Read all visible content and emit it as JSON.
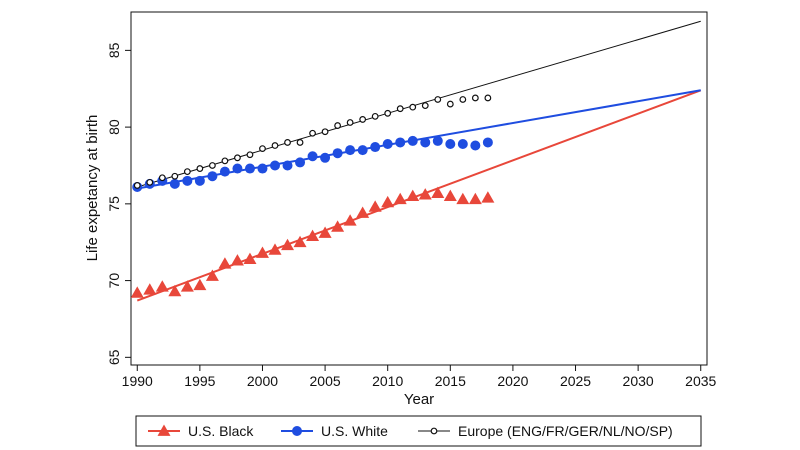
{
  "chart_data": {
    "type": "line",
    "title": "",
    "xlabel": "Year",
    "ylabel": "Life expetancy at birth",
    "xlim": [
      1989.5,
      2035.5
    ],
    "ylim": [
      64.5,
      87.5
    ],
    "xticks": [
      1990,
      1995,
      2000,
      2005,
      2010,
      2015,
      2020,
      2025,
      2030,
      2035
    ],
    "yticks": [
      65,
      70,
      75,
      80,
      85
    ],
    "grid": false,
    "legend_position": "bottom",
    "series": [
      {
        "name": "U.S. Black",
        "marker": "triangle",
        "color": "#e8473a",
        "x": [
          1990,
          1991,
          1992,
          1993,
          1994,
          1995,
          1996,
          1997,
          1998,
          1999,
          2000,
          2001,
          2002,
          2003,
          2004,
          2005,
          2006,
          2007,
          2008,
          2009,
          2010,
          2011,
          2012,
          2013,
          2014,
          2015,
          2016,
          2017,
          2018
        ],
        "y": [
          69.2,
          69.4,
          69.6,
          69.3,
          69.6,
          69.7,
          70.3,
          71.1,
          71.3,
          71.4,
          71.8,
          72.0,
          72.3,
          72.5,
          72.9,
          73.1,
          73.5,
          73.9,
          74.4,
          74.8,
          75.1,
          75.3,
          75.5,
          75.6,
          75.7,
          75.5,
          75.3,
          75.3,
          75.4
        ]
      },
      {
        "name": "U.S. White",
        "marker": "circle",
        "color": "#1f4de0",
        "x": [
          1990,
          1991,
          1992,
          1993,
          1994,
          1995,
          1996,
          1997,
          1998,
          1999,
          2000,
          2001,
          2002,
          2003,
          2004,
          2005,
          2006,
          2007,
          2008,
          2009,
          2010,
          2011,
          2012,
          2013,
          2014,
          2015,
          2016,
          2017,
          2018
        ],
        "y": [
          76.1,
          76.3,
          76.5,
          76.3,
          76.5,
          76.5,
          76.8,
          77.1,
          77.3,
          77.3,
          77.3,
          77.5,
          77.5,
          77.7,
          78.1,
          78.0,
          78.3,
          78.5,
          78.5,
          78.7,
          78.9,
          79.0,
          79.1,
          79.0,
          79.1,
          78.9,
          78.9,
          78.8,
          79.0
        ]
      },
      {
        "name": "Europe (ENG/FR/GER/NL/NO/SP)",
        "marker": "hollow-circle",
        "color": "#111111",
        "x": [
          1990,
          1991,
          1992,
          1993,
          1994,
          1995,
          1996,
          1997,
          1998,
          1999,
          2000,
          2001,
          2002,
          2003,
          2004,
          2005,
          2006,
          2007,
          2008,
          2009,
          2010,
          2011,
          2012,
          2013,
          2014,
          2015,
          2016,
          2017,
          2018
        ],
        "y": [
          76.2,
          76.4,
          76.7,
          76.8,
          77.1,
          77.3,
          77.5,
          77.8,
          78.0,
          78.2,
          78.6,
          78.8,
          79.0,
          79.0,
          79.6,
          79.7,
          80.1,
          80.3,
          80.5,
          80.7,
          80.9,
          81.2,
          81.3,
          81.4,
          81.8,
          81.5,
          81.8,
          81.9,
          81.9
        ]
      }
    ],
    "trend_lines": [
      {
        "series": "U.S. Black",
        "color": "#e8473a",
        "x": [
          1990,
          2035
        ],
        "y": [
          68.7,
          82.4
        ]
      },
      {
        "series": "U.S. White",
        "color": "#1f4de0",
        "x": [
          1990,
          2035
        ],
        "y": [
          76.0,
          82.4
        ]
      },
      {
        "series": "Europe (ENG/FR/GER/NL/NO/SP)",
        "color": "#111111",
        "x": [
          1990,
          2035
        ],
        "y": [
          76.1,
          86.9
        ]
      }
    ]
  }
}
